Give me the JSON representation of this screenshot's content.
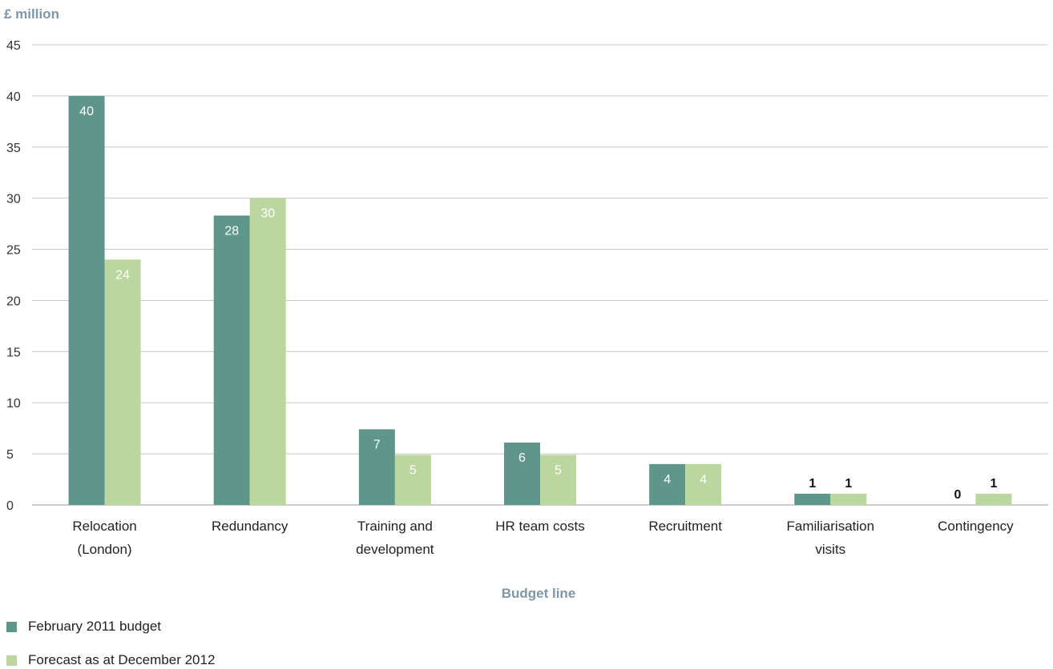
{
  "chart_data": {
    "type": "bar",
    "ylabel": "£ million",
    "xlabel": "Budget line",
    "ylim": [
      0,
      45
    ],
    "yticks": [
      0,
      5,
      10,
      15,
      20,
      25,
      30,
      35,
      40,
      45
    ],
    "grid": true,
    "legend_position": "bottom-left",
    "categories": [
      [
        "Relocation",
        "(London)"
      ],
      [
        "Redundancy"
      ],
      [
        "Training and",
        "development"
      ],
      [
        "HR team costs"
      ],
      [
        "Recruitment"
      ],
      [
        "Familiarisation",
        "visits"
      ],
      [
        "Contingency"
      ]
    ],
    "series": [
      {
        "name": "February 2011 budget",
        "color": "#5e9689",
        "values": [
          40,
          28.3,
          7.4,
          6.1,
          4.0,
          1.1,
          0
        ],
        "labels": [
          "40",
          "28",
          "7",
          "6",
          "4",
          "1",
          "0"
        ]
      },
      {
        "name": "Forecast as at December 2012",
        "color": "#bcd69f",
        "values": [
          24,
          30,
          4.9,
          4.9,
          4.0,
          1.1,
          1.1
        ],
        "labels": [
          "24",
          "30",
          "5",
          "5",
          "4",
          "1",
          "1"
        ]
      }
    ],
    "colors": {
      "axis_title": "#7f97a6",
      "grid": "#c8c8c8",
      "axis": "#999999"
    }
  }
}
